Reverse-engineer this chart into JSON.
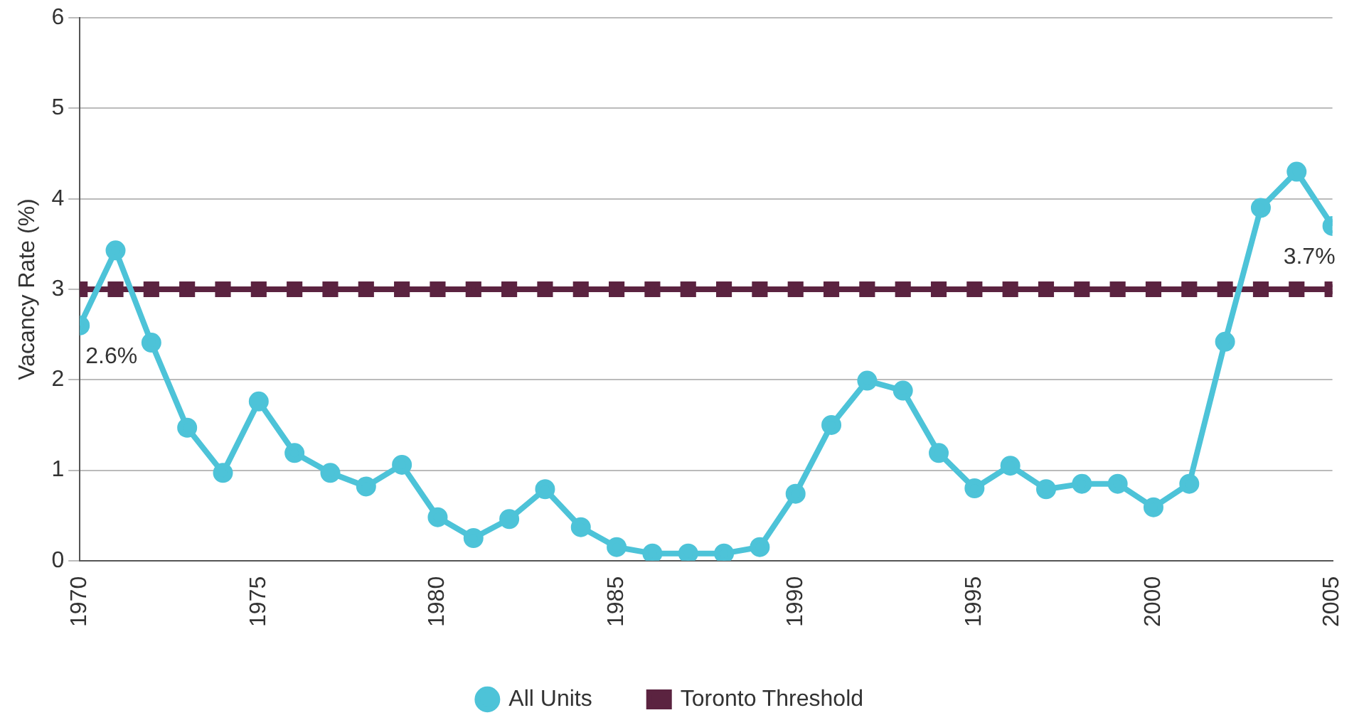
{
  "chart_data": {
    "type": "line",
    "ylabel": "Vacancy Rate (%)",
    "x": [
      1970,
      1971,
      1972,
      1973,
      1974,
      1975,
      1976,
      1977,
      1978,
      1979,
      1980,
      1981,
      1982,
      1983,
      1984,
      1985,
      1986,
      1987,
      1988,
      1989,
      1990,
      1991,
      1992,
      1993,
      1994,
      1995,
      1996,
      1997,
      1998,
      1999,
      2000,
      2001,
      2002,
      2003,
      2004,
      2005
    ],
    "series": [
      {
        "name": "All Units",
        "color": "#4dc3d8",
        "marker": "circle",
        "values": [
          2.6,
          3.43,
          2.41,
          1.47,
          0.97,
          1.76,
          1.19,
          0.97,
          0.82,
          1.06,
          0.48,
          0.25,
          0.46,
          0.79,
          0.37,
          0.15,
          0.08,
          0.08,
          0.08,
          0.15,
          0.74,
          1.5,
          1.99,
          1.88,
          1.19,
          0.8,
          1.05,
          0.79,
          0.85,
          0.85,
          0.59,
          0.85,
          2.42,
          3.9,
          4.3,
          3.7
        ]
      },
      {
        "name": "Toronto Threshold",
        "color": "#5b2340",
        "marker": "square",
        "values": [
          3,
          3,
          3,
          3,
          3,
          3,
          3,
          3,
          3,
          3,
          3,
          3,
          3,
          3,
          3,
          3,
          3,
          3,
          3,
          3,
          3,
          3,
          3,
          3,
          3,
          3,
          3,
          3,
          3,
          3,
          3,
          3,
          3,
          3,
          3,
          3
        ]
      }
    ],
    "xlim": [
      1970,
      2005
    ],
    "xticks": [
      1970,
      1975,
      1980,
      1985,
      1990,
      1995,
      2000,
      2005
    ],
    "ylim": [
      0,
      6
    ],
    "yticks": [
      0,
      1,
      2,
      3,
      4,
      5,
      6
    ],
    "grid": "y",
    "legend": "bottom",
    "line_style": "solid",
    "annotations": [
      {
        "text": "2.6%",
        "x": 1970,
        "y": 2.6
      },
      {
        "text": "3.7%",
        "x": 2005,
        "y": 3.7
      }
    ]
  }
}
